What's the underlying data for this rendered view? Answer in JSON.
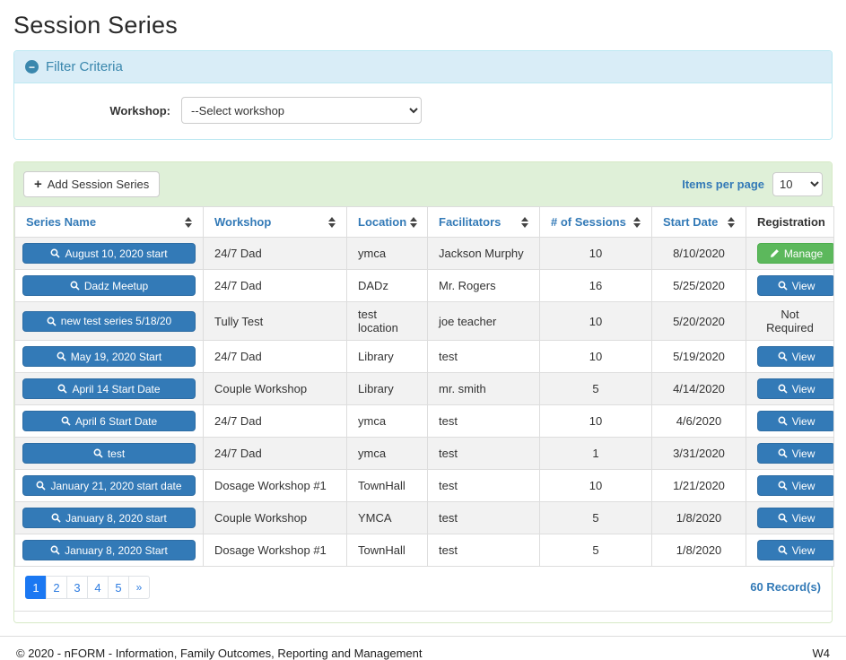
{
  "page": {
    "title": "Session Series"
  },
  "filter": {
    "title": "Filter Criteria",
    "collapse_icon": "minus-circle",
    "workshop_label": "Workshop:",
    "workshop_selected": "--Select workshop"
  },
  "toolbar": {
    "add_button": "Add Session Series",
    "items_per_page_label": "Items per page",
    "items_per_page_value": "10"
  },
  "table": {
    "columns": [
      {
        "label": "Series Name",
        "sortable": true
      },
      {
        "label": "Workshop",
        "sortable": true
      },
      {
        "label": "Location",
        "sortable": true
      },
      {
        "label": "Facilitators",
        "sortable": true
      },
      {
        "label": "# of Sessions",
        "sortable": true
      },
      {
        "label": "Start Date",
        "sortable": true
      },
      {
        "label": "Registration",
        "sortable": false
      }
    ],
    "rows": [
      {
        "series_name": "August 10, 2020 start",
        "workshop": "24/7 Dad",
        "location": "ymca",
        "facilitators": "Jackson Murphy",
        "sessions": "10",
        "start_date": "8/10/2020",
        "registration": {
          "type": "manage",
          "label": "Manage"
        }
      },
      {
        "series_name": "Dadz Meetup",
        "workshop": "24/7 Dad",
        "location": "DADz",
        "facilitators": "Mr. Rogers",
        "sessions": "16",
        "start_date": "5/25/2020",
        "registration": {
          "type": "view",
          "label": "View"
        }
      },
      {
        "series_name": "new test series 5/18/20",
        "workshop": "Tully Test",
        "location": "test location",
        "facilitators": "joe teacher",
        "sessions": "10",
        "start_date": "5/20/2020",
        "registration": {
          "type": "text",
          "label": "Not Required"
        }
      },
      {
        "series_name": "May 19, 2020 Start",
        "workshop": "24/7 Dad",
        "location": "Library",
        "facilitators": "test",
        "sessions": "10",
        "start_date": "5/19/2020",
        "registration": {
          "type": "view",
          "label": "View"
        }
      },
      {
        "series_name": "April 14 Start Date",
        "workshop": "Couple Workshop",
        "location": "Library",
        "facilitators": "mr. smith",
        "sessions": "5",
        "start_date": "4/14/2020",
        "registration": {
          "type": "view",
          "label": "View"
        }
      },
      {
        "series_name": "April 6 Start Date",
        "workshop": "24/7 Dad",
        "location": "ymca",
        "facilitators": "test",
        "sessions": "10",
        "start_date": "4/6/2020",
        "registration": {
          "type": "view",
          "label": "View"
        }
      },
      {
        "series_name": "test",
        "workshop": "24/7 Dad",
        "location": "ymca",
        "facilitators": "test",
        "sessions": "1",
        "start_date": "3/31/2020",
        "registration": {
          "type": "view",
          "label": "View"
        }
      },
      {
        "series_name": "January 21, 2020 start date",
        "workshop": "Dosage Workshop #1",
        "location": "TownHall",
        "facilitators": "test",
        "sessions": "10",
        "start_date": "1/21/2020",
        "registration": {
          "type": "view",
          "label": "View"
        }
      },
      {
        "series_name": "January 8, 2020 start",
        "workshop": "Couple Workshop",
        "location": "YMCA",
        "facilitators": "test",
        "sessions": "5",
        "start_date": "1/8/2020",
        "registration": {
          "type": "view",
          "label": "View"
        }
      },
      {
        "series_name": "January 8, 2020 Start",
        "workshop": "Dosage Workshop #1",
        "location": "TownHall",
        "facilitators": "test",
        "sessions": "5",
        "start_date": "1/8/2020",
        "registration": {
          "type": "view",
          "label": "View"
        }
      }
    ]
  },
  "pagination": {
    "pages": [
      "1",
      "2",
      "3",
      "4",
      "5",
      "»"
    ],
    "active": "1",
    "records": "60 Record(s)"
  },
  "footer": {
    "copyright": "© 2020 - nFORM - Information, Family Outcomes, Reporting and Management",
    "environment": "W4"
  },
  "colors": {
    "primary_blue": "#337ab7",
    "button_green": "#5cb85c",
    "filter_header_bg": "#d9edf7",
    "filter_header_text": "#3a87ad",
    "toolbar_bg": "#dff0d8",
    "panel_green_border": "#d6e9c6",
    "active_page_blue": "#1b78f2",
    "stripe_gray": "#f2f2f2"
  }
}
